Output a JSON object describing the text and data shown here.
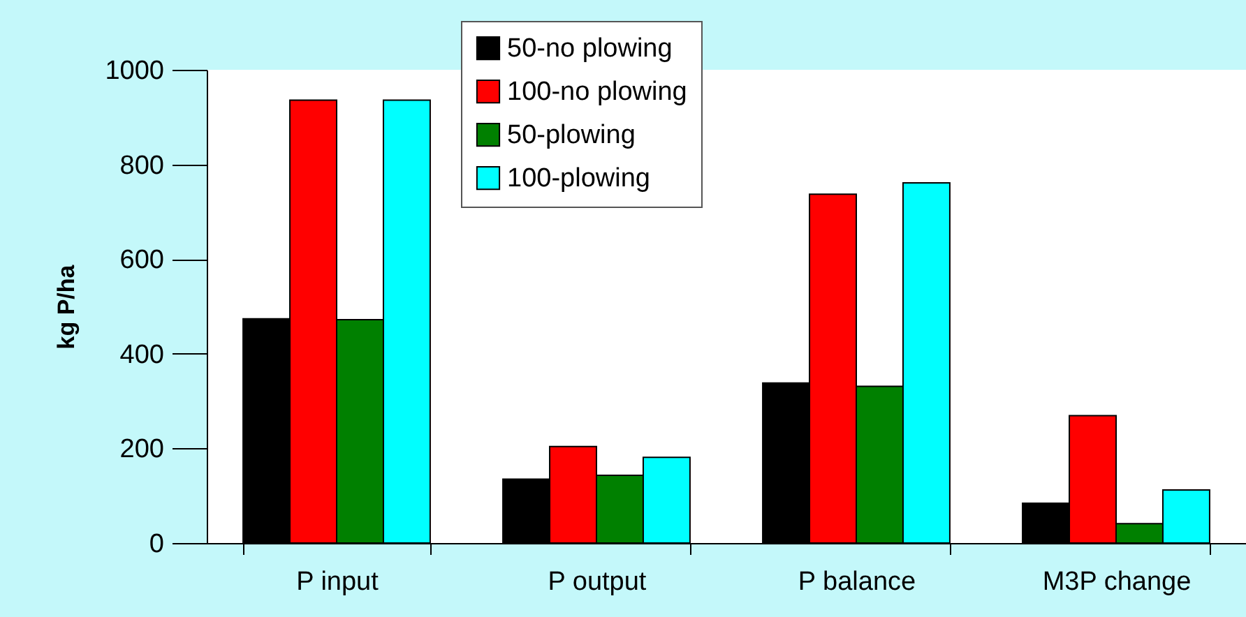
{
  "chart_data": {
    "type": "bar",
    "ylabel": "kg P/ha",
    "categories": [
      "P input",
      "P output",
      "P balance",
      "M3P change"
    ],
    "series": [
      {
        "name": "50-no plowing",
        "color": "#000000",
        "values": [
          474,
          135,
          338,
          84
        ]
      },
      {
        "name": "100-no plowing",
        "color": "#ff0000",
        "values": [
          936,
          204,
          737,
          269
        ]
      },
      {
        "name": "50-plowing",
        "color": "#008000",
        "values": [
          472,
          143,
          331,
          41
        ]
      },
      {
        "name": "100-plowing",
        "color": "#00ffff",
        "values": [
          936,
          181,
          761,
          112
        ]
      }
    ],
    "ylim": [
      0,
      1000
    ],
    "yticks": [
      0,
      200,
      400,
      600,
      800,
      1000
    ],
    "grid": false,
    "legend": "top"
  }
}
